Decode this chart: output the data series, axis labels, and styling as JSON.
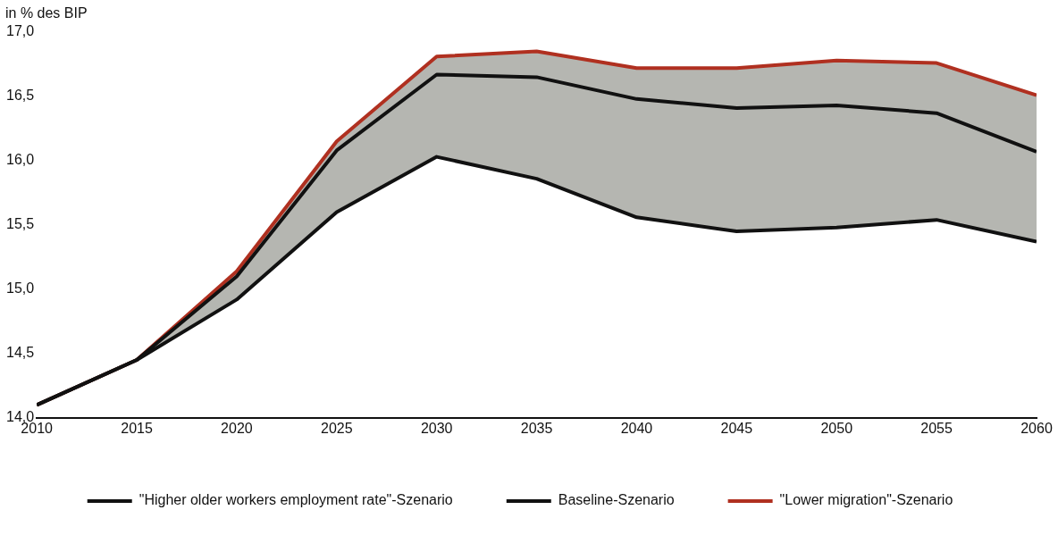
{
  "chart_data": {
    "type": "line",
    "ylabel": "in % des BIP",
    "x": [
      2010,
      2015,
      2020,
      2025,
      2030,
      2035,
      2040,
      2045,
      2050,
      2055,
      2060
    ],
    "xlim": [
      2010,
      2060
    ],
    "xticks": [
      2010,
      2015,
      2020,
      2025,
      2030,
      2035,
      2040,
      2045,
      2050,
      2055,
      2060
    ],
    "ylim": [
      14,
      17
    ],
    "yticks": [
      {
        "value": 14,
        "label": "14,0"
      },
      {
        "value": 14.5,
        "label": "14,5"
      },
      {
        "value": 15,
        "label": "15,0"
      },
      {
        "value": 15.5,
        "label": "15,5"
      },
      {
        "value": 16,
        "label": "16,0"
      },
      {
        "value": 16.5,
        "label": "16,5"
      },
      {
        "value": 17,
        "label": "17,0"
      }
    ],
    "series": [
      {
        "name": "\"Higher older workers employment rate\"-Szenario",
        "color": "#111111",
        "values": [
          14.1,
          14.45,
          14.92,
          15.6,
          16.03,
          15.86,
          15.56,
          15.45,
          15.48,
          15.54,
          15.37
        ]
      },
      {
        "name": "Baseline-Szenario",
        "color": "#111111",
        "values": [
          14.1,
          14.45,
          15.1,
          16.08,
          16.67,
          16.65,
          16.48,
          16.41,
          16.43,
          16.37,
          16.07
        ],
        "lower": [
          14.1,
          14.45,
          14.92,
          15.6,
          16.03,
          15.86,
          15.56,
          15.45,
          15.48,
          15.54,
          15.37
        ],
        "upper": [
          14.1,
          14.45,
          15.14,
          16.15,
          16.81,
          16.85,
          16.72,
          16.72,
          16.78,
          16.76,
          16.51
        ]
      },
      {
        "name": "\"Lower migration\"-Szenario",
        "color": "#b03020",
        "values": [
          14.1,
          14.45,
          15.14,
          16.15,
          16.81,
          16.85,
          16.72,
          16.72,
          16.78,
          16.76,
          16.51
        ]
      }
    ],
    "grid": false,
    "legend": "bottom",
    "marker": "none",
    "line_style": "solid"
  }
}
